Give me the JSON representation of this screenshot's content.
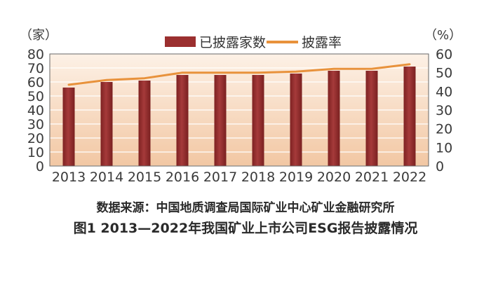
{
  "chart_data": {
    "type": "bar",
    "title": "图1  2013—2022年我国矿业上市公司ESG报告披露情况",
    "source": "数据来源：中国地质调查局国际矿业中心矿业金融研究所",
    "categories": [
      "2013",
      "2014",
      "2015",
      "2016",
      "2017",
      "2018",
      "2019",
      "2020",
      "2021",
      "2022"
    ],
    "series": [
      {
        "name": "已披露家数",
        "type": "bar",
        "axis": "left",
        "color": "#9b2f2f",
        "values": [
          56,
          60,
          61,
          65,
          65,
          65,
          66,
          68,
          68,
          71
        ]
      },
      {
        "name": "披露率",
        "type": "line",
        "axis": "right",
        "color": "#e8923c",
        "values": [
          43.5,
          46,
          47,
          50,
          50,
          50,
          50.5,
          52,
          52,
          54.5
        ]
      }
    ],
    "y_left": {
      "unit_label": "（家）",
      "ticks": [
        "0",
        "10",
        "20",
        "30",
        "40",
        "50",
        "60",
        "70",
        "80"
      ],
      "ylim": [
        0,
        80
      ]
    },
    "y_right": {
      "unit_label": "（%）",
      "ticks": [
        "0",
        "10",
        "20",
        "30",
        "40",
        "50",
        "60"
      ],
      "ylim": [
        0,
        60
      ]
    },
    "legend_position": "top-center",
    "grid": true,
    "background_gradient": [
      "#f2c7a3",
      "#fdf1e6"
    ]
  }
}
